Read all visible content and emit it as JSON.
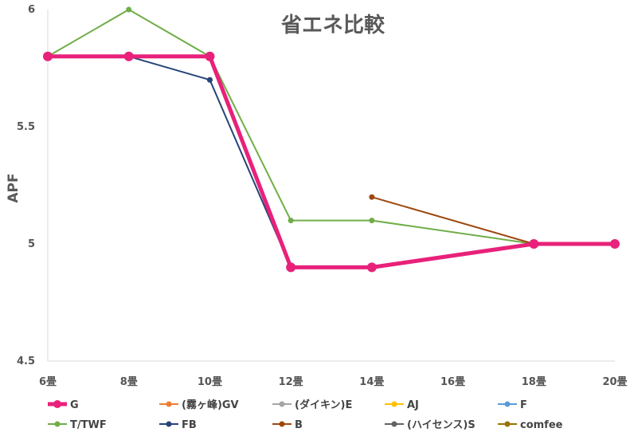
{
  "chart_data": {
    "type": "line",
    "title": "省エネ比較",
    "ylabel": "APF",
    "xlabel": "",
    "categories": [
      "6畳",
      "8畳",
      "10畳",
      "12畳",
      "14畳",
      "16畳",
      "18畳",
      "20畳"
    ],
    "ylim": [
      4.5,
      6
    ],
    "yticks": [
      "4.5",
      "5",
      "5.5",
      "6"
    ],
    "grid": false,
    "legend_position": "bottom",
    "series": [
      {
        "name": "G",
        "color": "#E8217A",
        "values": [
          5.8,
          5.8,
          5.8,
          4.9,
          4.9,
          null,
          5.0,
          5.0
        ]
      },
      {
        "name": "(霧ヶ峰)GV",
        "color": "#ED7D31",
        "values": [
          5.8,
          5.8,
          5.8,
          4.9,
          4.9,
          null,
          5.0,
          5.0
        ]
      },
      {
        "name": "(ダイキン)E",
        "color": "#A5A5A5",
        "values": [
          5.8,
          5.8,
          5.8,
          4.9,
          4.9,
          null,
          5.0,
          5.0
        ]
      },
      {
        "name": "AJ",
        "color": "#FFC000",
        "values": [
          5.8,
          5.8,
          5.8,
          4.9,
          4.9,
          null,
          5.0,
          5.0
        ]
      },
      {
        "name": "F",
        "color": "#5B9BD5",
        "values": [
          5.8,
          5.8,
          5.8,
          4.9,
          4.9,
          null,
          5.0,
          5.0
        ]
      },
      {
        "name": "T/TWF",
        "color": "#70AD47",
        "values": [
          5.8,
          6.0,
          5.8,
          5.1,
          5.1,
          null,
          5.0,
          null
        ]
      },
      {
        "name": "FB",
        "color": "#264478",
        "values": [
          5.8,
          5.8,
          5.7,
          4.9,
          4.9,
          null,
          5.0,
          null
        ]
      },
      {
        "name": "B",
        "color": "#9E480E",
        "values": [
          null,
          null,
          null,
          null,
          5.2,
          null,
          5.0,
          null
        ]
      },
      {
        "name": "(ハイセンス)S",
        "color": "#636363",
        "values": [
          5.8,
          5.8,
          5.8,
          4.9,
          4.9,
          null,
          5.0,
          null
        ]
      },
      {
        "name": "comfee",
        "color": "#997300",
        "values": [
          null,
          null,
          5.7,
          null,
          null,
          null,
          null,
          null
        ]
      }
    ]
  }
}
